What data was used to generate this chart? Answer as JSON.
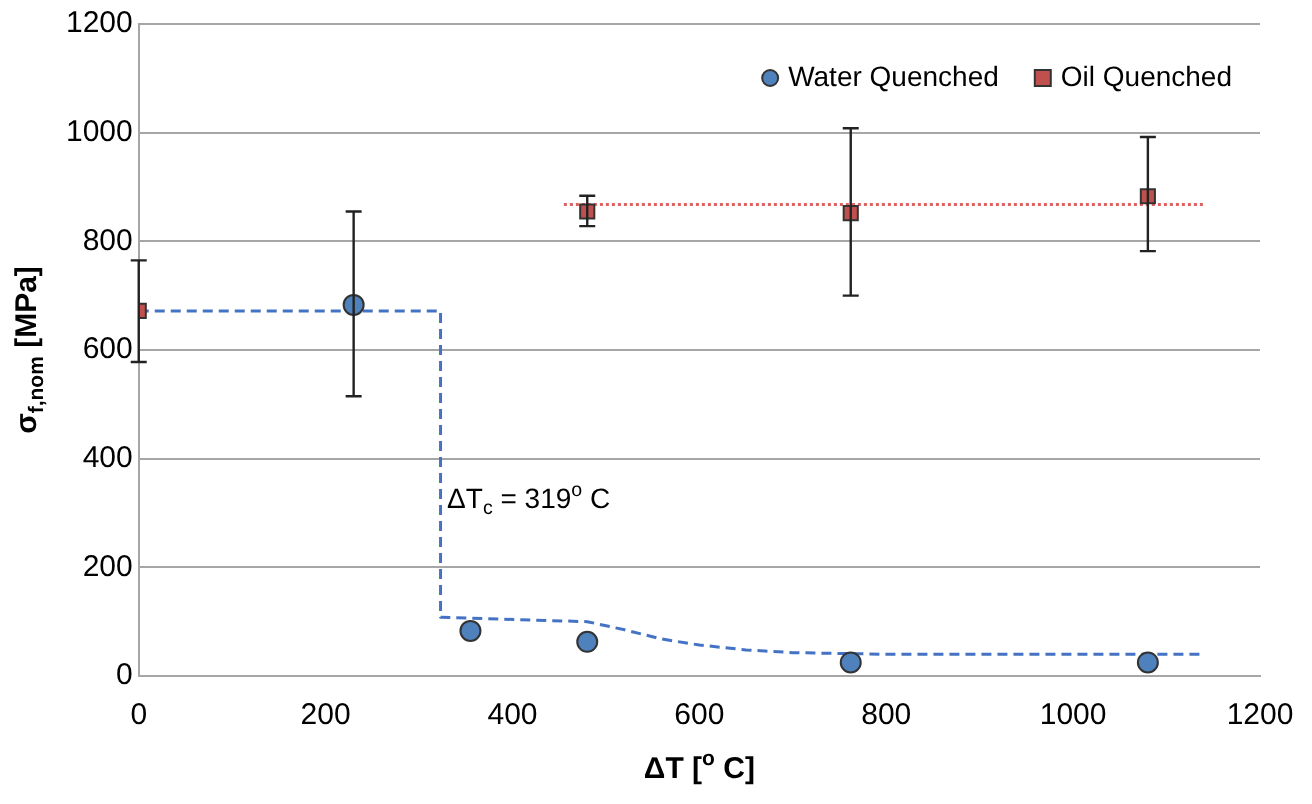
{
  "chart_data": {
    "type": "scatter",
    "xlabel": "ΔT [$^{o}$ C]",
    "ylabel": "σ$_{f,nom}$ [MPa]",
    "xlim": [
      0,
      1200
    ],
    "xticks": [
      0,
      200,
      400,
      600,
      800,
      1000,
      1200
    ],
    "ylim": [
      0,
      1200
    ],
    "yticks": [
      0,
      200,
      400,
      600,
      800,
      1000,
      1200
    ],
    "grid": "y",
    "legend": "top right",
    "annotations": [
      "ΔT$_{c}$ = 319$^{o}$ C"
    ],
    "series": [
      {
        "name": "Water Quenched",
        "type": "scatter",
        "color": "#4f81bd",
        "marker": "circle",
        "x": [
          230,
          355,
          480,
          762,
          1080
        ],
        "values": [
          683,
          83,
          63,
          25,
          25
        ],
        "errors": [
          [
            515,
            855
          ],
          null,
          null,
          null,
          null
        ]
      },
      {
        "name": "Oil Quenched",
        "type": "scatter",
        "color": "#c0504d",
        "marker": "square",
        "x": [
          0,
          480,
          762,
          1080
        ],
        "values": [
          672,
          855,
          852,
          883
        ],
        "errors": [
          [
            578,
            765
          ],
          [
            828,
            884
          ],
          [
            700,
            1008
          ],
          [
            782,
            992
          ]
        ]
      },
      {
        "type": "line",
        "color": "#4472c4",
        "line_style": "dashed",
        "marker": "none",
        "x": [
          0,
          323,
          323,
          480,
          520,
          560,
          600,
          650,
          700,
          800,
          900,
          1140
        ],
        "values": [
          672,
          672,
          108,
          100,
          85,
          68,
          57,
          48,
          43,
          40,
          40,
          40
        ]
      },
      {
        "type": "line",
        "color": "#e06060",
        "line_style": "dotted",
        "marker": "none",
        "x": [
          455,
          1140
        ],
        "values": [
          868,
          868
        ]
      }
    ]
  }
}
